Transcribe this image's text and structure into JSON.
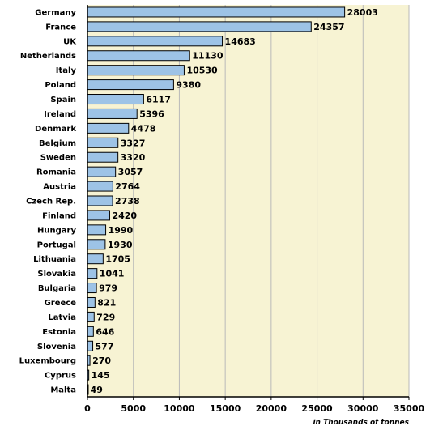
{
  "chart_data": {
    "type": "bar",
    "orientation": "horizontal",
    "categories": [
      "Germany",
      "France",
      "UK",
      "Netherlands",
      "Italy",
      "Poland",
      "Spain",
      "Ireland",
      "Denmark",
      "Belgium",
      "Sweden",
      "Romania",
      "Austria",
      "Czech Rep.",
      "Finland",
      "Hungary",
      "Portugal",
      "Lithuania",
      "Slovakia",
      "Bulgaria",
      "Greece",
      "Latvia",
      "Estonia",
      "Slovenia",
      "Luxembourg",
      "Cyprus",
      "Malta"
    ],
    "values": [
      28003,
      24357,
      14683,
      11130,
      10530,
      9380,
      6117,
      5396,
      4478,
      3327,
      3320,
      3057,
      2764,
      2738,
      2420,
      1990,
      1930,
      1705,
      1041,
      979,
      821,
      729,
      646,
      577,
      270,
      145,
      49
    ],
    "title": "",
    "xlabel": "in Thousands of tonnes",
    "ylabel": "",
    "xlim": [
      0,
      35000
    ],
    "x_ticks": [
      0,
      5000,
      10000,
      15000,
      20000,
      25000,
      30000,
      35000
    ],
    "grid": "vertical",
    "colors": {
      "bar_fill": "#9dc3e6",
      "bar_stroke": "#000000",
      "plot_background": "#f7f3d3",
      "gridline": "#b9b9b9"
    }
  }
}
